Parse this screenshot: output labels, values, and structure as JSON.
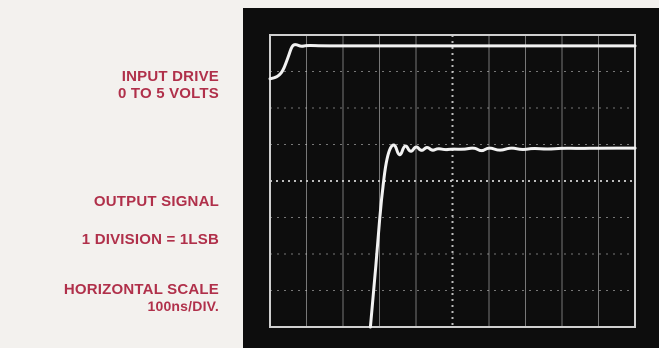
{
  "labels": {
    "input": {
      "line1": "INPUT DRIVE",
      "line2": "0 TO 5 VOLTS"
    },
    "output": {
      "line1": "OUTPUT SIGNAL",
      "line2": "1 DIVISION = 1LSB"
    },
    "horizontal": {
      "line1": "HORIZONTAL SCALE",
      "line2": "100ns/DIV."
    }
  },
  "colors": {
    "label_text": "#b0304a",
    "screen": "#0d0d0d",
    "trace": "#f2f2f2",
    "graticule": "#cfcfcf"
  },
  "chart_data": {
    "type": "line",
    "grid": true,
    "graticule": {
      "x_divisions": 10,
      "y_divisions": 8
    },
    "x_unit": "100ns/DIV.",
    "series": [
      {
        "name": "INPUT DRIVE",
        "x": [
          0.0,
          0.2,
          0.35,
          0.5,
          0.6,
          0.7,
          0.85,
          1.0,
          1.5,
          3.0,
          6.0,
          10.0
        ],
        "y": [
          6.8,
          6.85,
          7.0,
          7.4,
          7.7,
          7.75,
          7.68,
          7.72,
          7.7,
          7.7,
          7.7,
          7.7
        ]
      },
      {
        "name": "OUTPUT SIGNAL",
        "x": [
          2.75,
          2.85,
          2.95,
          3.05,
          3.2,
          3.4,
          3.55,
          3.7,
          3.85,
          4.0,
          4.15,
          4.3,
          4.45,
          4.6,
          4.8,
          5.0,
          5.3,
          5.6,
          5.8,
          6.0,
          6.3,
          6.6,
          6.9,
          7.2,
          7.6,
          8.0,
          8.5,
          9.0,
          10.0
        ],
        "y": [
          0.0,
          1.1,
          2.3,
          3.5,
          4.7,
          5.1,
          4.6,
          5.05,
          4.75,
          4.98,
          4.8,
          4.95,
          4.82,
          4.9,
          4.85,
          4.88,
          4.86,
          4.92,
          4.8,
          4.93,
          4.82,
          4.92,
          4.85,
          4.9,
          4.87,
          4.9,
          4.89,
          4.9,
          4.9
        ]
      }
    ]
  }
}
